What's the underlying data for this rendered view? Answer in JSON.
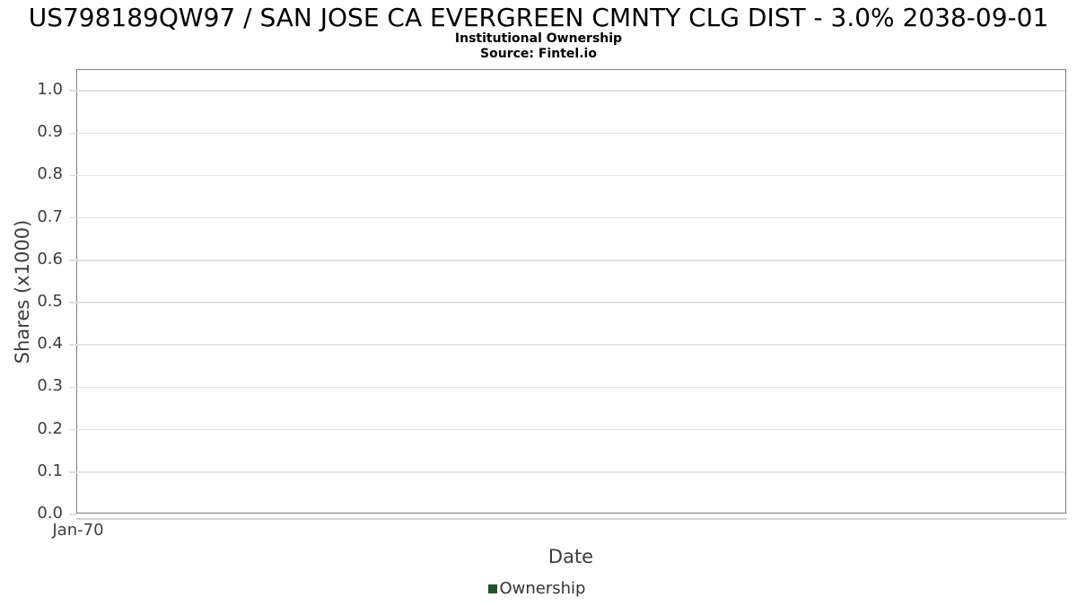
{
  "header": {
    "title": "US798189QW97 / SAN JOSE CA EVERGREEN CMNTY CLG DIST - 3.0% 2038-09-01",
    "subtitle": "Institutional Ownership",
    "source": "Source: Fintel.io"
  },
  "chart_data": {
    "type": "line",
    "title": "US798189QW97 / SAN JOSE CA EVERGREEN CMNTY CLG DIST - 3.0% 2038-09-01",
    "subtitle": "Institutional Ownership",
    "source": "Source: Fintel.io",
    "xlabel": "Date",
    "ylabel": "Shares (x1000)",
    "x_ticks": [
      "Jan-70"
    ],
    "y_ticks": [
      "0.0",
      "0.1",
      "0.2",
      "0.3",
      "0.4",
      "0.5",
      "0.6",
      "0.7",
      "0.8",
      "0.9",
      "1.0"
    ],
    "ylim": [
      0,
      1.049
    ],
    "grid": true,
    "grid_color": "#e4e4e4",
    "border_color": "#7f7f7f",
    "legend_position": "bottom",
    "series": [
      {
        "name": "Ownership",
        "color": "#20512b",
        "x": [],
        "values": []
      }
    ]
  }
}
